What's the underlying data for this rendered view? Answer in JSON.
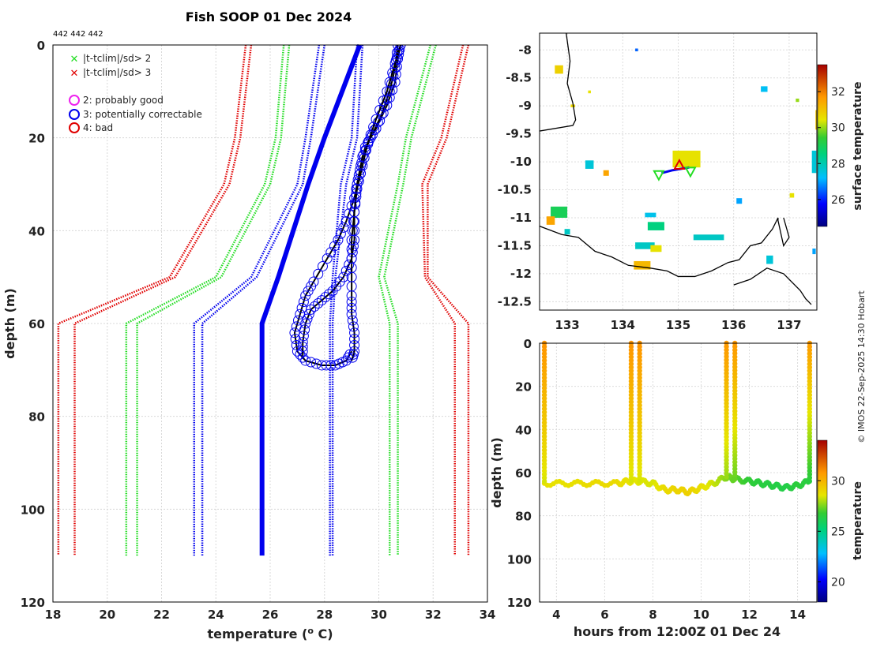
{
  "title": "Fish SOOP 01 Dec 2024",
  "platform_ids": "442 442 442",
  "credit": "© IMOS 22-Sep-2025 14:30 Hobart",
  "colors": {
    "red": "#e00000",
    "green": "#22dd22",
    "blue": "#0000ee",
    "magenta": "#ee22ee",
    "black": "#000000"
  },
  "legend": {
    "cross_items": [
      {
        "label": "|t-tclim|/sd> 2",
        "color": "#22dd22"
      },
      {
        "label": "|t-tclim|/sd> 3",
        "color": "#e00000"
      }
    ],
    "circle_items": [
      {
        "label": "2: probably good",
        "color": "#ee22ee"
      },
      {
        "label": "3: potentially correctable",
        "color": "#0000ee"
      },
      {
        "label": "4: bad",
        "color": "#e00000"
      }
    ]
  },
  "chart_data": [
    {
      "id": "profile",
      "type": "line",
      "xlabel": "temperature (° C)",
      "xlabel_main": "temperature (",
      "xlabel_sup": "o",
      "xlabel_end": " C)",
      "ylabel": "depth (m)",
      "xlim": [
        18,
        34
      ],
      "ylim": [
        0,
        120
      ],
      "y_inverted": true,
      "xticks": [
        18,
        20,
        22,
        24,
        26,
        28,
        30,
        32,
        34
      ],
      "yticks": [
        0,
        20,
        40,
        60,
        80,
        100,
        120
      ],
      "grid": true,
      "climatology_depth": [
        0,
        20,
        30,
        50,
        60,
        110
      ],
      "climatology_mean": [
        29.3,
        28.0,
        27.4,
        26.3,
        25.7,
        25.7
      ],
      "climatology_bands": [
        {
          "name": "-3 sd",
          "color": "#e00000",
          "left": [
            25.1,
            24.7,
            24.3,
            22.3,
            18.2,
            18.2
          ],
          "right": [
            25.3,
            24.9,
            24.5,
            22.5,
            18.8,
            18.8
          ]
        },
        {
          "name": "-2 sd",
          "color": "#22dd22",
          "left": [
            26.5,
            26.2,
            25.8,
            24.0,
            20.7,
            20.7
          ],
          "right": [
            26.7,
            26.4,
            26.0,
            24.2,
            21.1,
            21.1
          ]
        },
        {
          "name": "-1 sd",
          "color": "#0000ee",
          "left": [
            27.8,
            27.3,
            27.0,
            25.3,
            23.2,
            23.2
          ],
          "right": [
            28.0,
            27.5,
            27.2,
            25.5,
            23.5,
            23.5
          ]
        },
        {
          "name": "+1 sd",
          "color": "#0000ee",
          "left": [
            29.2,
            29.0,
            28.6,
            28.3,
            28.2,
            28.2
          ],
          "right": [
            29.4,
            29.2,
            28.8,
            28.4,
            28.3,
            28.3
          ]
        },
        {
          "name": "+2 sd",
          "color": "#22dd22",
          "left": [
            31.9,
            31.0,
            30.7,
            30.0,
            30.4,
            30.4
          ],
          "right": [
            32.1,
            31.2,
            30.9,
            30.2,
            30.7,
            30.7
          ]
        },
        {
          "name": "+3 sd",
          "color": "#e00000",
          "left": [
            33.1,
            32.3,
            31.6,
            31.7,
            32.8,
            32.8
          ],
          "right": [
            33.3,
            32.5,
            31.8,
            31.8,
            33.3,
            33.3
          ]
        }
      ],
      "casts": [
        {
          "temperature": [
            30.8,
            30.7,
            30.6,
            30.3,
            29.9,
            29.5,
            29.3,
            29.1,
            28.8,
            28.5,
            28.1,
            27.6,
            27.3,
            27.1,
            26.9,
            27.0,
            27.3,
            27.9,
            28.4,
            28.8,
            29.0
          ],
          "depth": [
            0,
            3,
            8,
            13,
            18,
            22,
            27,
            33,
            38,
            42,
            46,
            51,
            54,
            58,
            62,
            66,
            68,
            69,
            69,
            68,
            66
          ]
        },
        {
          "temperature": [
            30.7,
            30.6,
            30.4,
            30.1,
            29.7,
            29.4,
            29.2,
            29.1,
            29.1,
            29.0,
            28.7,
            28.3,
            27.9,
            27.5,
            27.3,
            27.2,
            27.2
          ],
          "depth": [
            0,
            5,
            10,
            15,
            20,
            24,
            30,
            36,
            42,
            46,
            50,
            53,
            55,
            57,
            60,
            64,
            67
          ]
        },
        {
          "temperature": [
            30.8,
            30.6,
            30.3,
            29.9,
            29.6,
            29.4,
            29.2,
            29.1,
            29.0,
            29.0,
            29.0,
            29.0,
            29.1,
            29.1,
            29.0
          ],
          "depth": [
            0,
            4,
            10,
            16,
            21,
            26,
            31,
            36,
            42,
            48,
            54,
            58,
            62,
            66,
            68
          ]
        }
      ]
    },
    {
      "id": "map",
      "type": "heatmap",
      "xlim": [
        132.5,
        137.5
      ],
      "ylim": [
        -12.65,
        -7.7
      ],
      "xticks": [
        133,
        134,
        135,
        136,
        137
      ],
      "yticks": [
        -8,
        -8.5,
        -9,
        -9.5,
        -10,
        -10.5,
        -11,
        -11.5,
        -12,
        -12.5
      ],
      "colorbar_label": "surface temperature",
      "clim": [
        24.5,
        33.5
      ],
      "colorbar_ticks": [
        26,
        28,
        30,
        32
      ],
      "tracks": [
        {
          "lon": [
            134.7,
            134.9,
            135.2
          ],
          "lat": [
            -10.2,
            -10.15,
            -10.1
          ]
        }
      ],
      "markers": [
        {
          "type": "triangle",
          "lon": 135.02,
          "lat": -10.07,
          "color": "#e00000"
        },
        {
          "type": "down-triangle",
          "lon": 134.65,
          "lat": -10.22,
          "color": "#22dd22"
        },
        {
          "type": "down-triangle",
          "lon": 135.22,
          "lat": -10.16,
          "color": "#22dd22"
        }
      ],
      "sst_patches": [
        {
          "lon": 132.85,
          "lat": -8.35,
          "w": 0.15,
          "h": 0.15,
          "t": 30.8
        },
        {
          "lon": 133.4,
          "lat": -8.75,
          "w": 0.05,
          "h": 0.05,
          "t": 30.5
        },
        {
          "lon": 133.1,
          "lat": -9.0,
          "w": 0.08,
          "h": 0.05,
          "t": 30.7
        },
        {
          "lon": 134.25,
          "lat": -8.0,
          "w": 0.05,
          "h": 0.05,
          "t": 26.5
        },
        {
          "lon": 136.55,
          "lat": -8.7,
          "w": 0.12,
          "h": 0.1,
          "t": 27.3
        },
        {
          "lon": 137.15,
          "lat": -8.9,
          "w": 0.06,
          "h": 0.06,
          "t": 30.0
        },
        {
          "lon": 137.5,
          "lat": -9.25,
          "w": 0.05,
          "h": 0.35,
          "t": 31.0
        },
        {
          "lon": 137.45,
          "lat": -10.0,
          "w": 0.08,
          "h": 0.4,
          "t": 27.6
        },
        {
          "lon": 135.15,
          "lat": -9.95,
          "w": 0.5,
          "h": 0.3,
          "t": 30.5
        },
        {
          "lon": 133.4,
          "lat": -10.05,
          "w": 0.15,
          "h": 0.15,
          "t": 27.6
        },
        {
          "lon": 133.7,
          "lat": -10.2,
          "w": 0.1,
          "h": 0.1,
          "t": 31.5
        },
        {
          "lon": 132.85,
          "lat": -10.9,
          "w": 0.3,
          "h": 0.2,
          "t": 29.0
        },
        {
          "lon": 132.7,
          "lat": -11.05,
          "w": 0.15,
          "h": 0.15,
          "t": 31.5
        },
        {
          "lon": 133.0,
          "lat": -11.25,
          "w": 0.1,
          "h": 0.1,
          "t": 27.8
        },
        {
          "lon": 134.6,
          "lat": -11.15,
          "w": 0.3,
          "h": 0.15,
          "t": 28.5
        },
        {
          "lon": 135.55,
          "lat": -11.35,
          "w": 0.55,
          "h": 0.1,
          "t": 27.8
        },
        {
          "lon": 134.4,
          "lat": -11.5,
          "w": 0.35,
          "h": 0.12,
          "t": 27.8
        },
        {
          "lon": 134.6,
          "lat": -11.55,
          "w": 0.2,
          "h": 0.12,
          "t": 30.5
        },
        {
          "lon": 134.35,
          "lat": -11.85,
          "w": 0.3,
          "h": 0.15,
          "t": 31.2
        },
        {
          "lon": 134.5,
          "lat": -10.95,
          "w": 0.2,
          "h": 0.08,
          "t": 27.4
        },
        {
          "lon": 136.65,
          "lat": -11.75,
          "w": 0.12,
          "h": 0.15,
          "t": 27.6
        },
        {
          "lon": 136.1,
          "lat": -10.7,
          "w": 0.1,
          "h": 0.1,
          "t": 27.0
        },
        {
          "lon": 137.05,
          "lat": -10.6,
          "w": 0.08,
          "h": 0.08,
          "t": 30.5
        },
        {
          "lon": 137.45,
          "lat": -11.6,
          "w": 0.06,
          "h": 0.1,
          "t": 27.0
        }
      ],
      "coastline": [
        {
          "lon": [
            132.98,
            133.05,
            133.0,
            133.1,
            133.15,
            133.1,
            132.5
          ],
          "lat": [
            -7.7,
            -8.2,
            -8.6,
            -8.95,
            -9.25,
            -9.35,
            -9.45
          ]
        },
        {
          "lon": [
            132.5,
            132.9,
            133.2,
            133.5,
            133.8,
            134.1,
            134.5,
            134.8,
            135.0,
            135.3,
            135.6,
            135.9,
            136.1,
            136.3,
            136.5,
            136.7,
            136.8,
            136.8,
            136.9,
            137.0,
            136.9
          ],
          "lat": [
            -11.15,
            -11.3,
            -11.35,
            -11.6,
            -11.7,
            -11.85,
            -11.9,
            -11.95,
            -12.05,
            -12.05,
            -11.95,
            -11.8,
            -11.75,
            -11.5,
            -11.45,
            -11.2,
            -11.0,
            -11.05,
            -11.5,
            -11.35,
            -11.0
          ]
        },
        {
          "lon": [
            136.0,
            136.3,
            136.6,
            136.9,
            137.2,
            137.3,
            137.4
          ],
          "lat": [
            -12.2,
            -12.1,
            -11.9,
            -12.0,
            -12.3,
            -12.45,
            -12.55
          ]
        }
      ]
    },
    {
      "id": "timeseries",
      "type": "scatter",
      "xlabel": "hours from 12:00Z 01 Dec 24",
      "ylabel": "depth (m)",
      "xlim": [
        3.3,
        14.8
      ],
      "ylim": [
        0,
        120
      ],
      "y_inverted": true,
      "xticks": [
        4,
        6,
        8,
        10,
        12,
        14
      ],
      "yticks": [
        0,
        20,
        40,
        60,
        80,
        100,
        120
      ],
      "colorbar_label": "temperature",
      "clim": [
        18,
        34
      ],
      "colorbar_ticks": [
        20,
        25,
        30
      ],
      "profiles": [
        {
          "hour": 3.5,
          "depth": [
            0,
            64
          ],
          "temp": [
            30.9,
            28.4
          ]
        },
        {
          "hour": 7.1,
          "depth": [
            0,
            64
          ],
          "temp": [
            30.9,
            28.4
          ]
        },
        {
          "hour": 7.45,
          "depth": [
            0,
            64
          ],
          "temp": [
            30.9,
            28.4
          ]
        },
        {
          "hour": 11.05,
          "depth": [
            0,
            62
          ],
          "temp": [
            30.8,
            27.8
          ]
        },
        {
          "hour": 11.4,
          "depth": [
            0,
            63
          ],
          "temp": [
            30.8,
            27.3
          ]
        },
        {
          "hour": 14.5,
          "depth": [
            0,
            64
          ],
          "temp": [
            30.7,
            26.5
          ]
        }
      ],
      "bottom_trace": {
        "hour": [
          3.5,
          4.5,
          5.5,
          6.5,
          7.0,
          7.45,
          8.0,
          8.5,
          9.0,
          9.5,
          10.0,
          10.5,
          11.05,
          11.4,
          12.0,
          12.5,
          13.0,
          13.5,
          14.0,
          14.5
        ],
        "depth": [
          65,
          65,
          65,
          65,
          64,
          64,
          65,
          68,
          68,
          69,
          67,
          65,
          62,
          63,
          64,
          65,
          66,
          67,
          66,
          64
        ],
        "temp": [
          28.7,
          28.7,
          28.9,
          28.9,
          28.7,
          28.5,
          28.4,
          28.9,
          29.1,
          29.2,
          28.8,
          28.3,
          27.6,
          27.2,
          26.7,
          26.5,
          26.4,
          26.3,
          26.6,
          26.5
        ]
      }
    }
  ]
}
